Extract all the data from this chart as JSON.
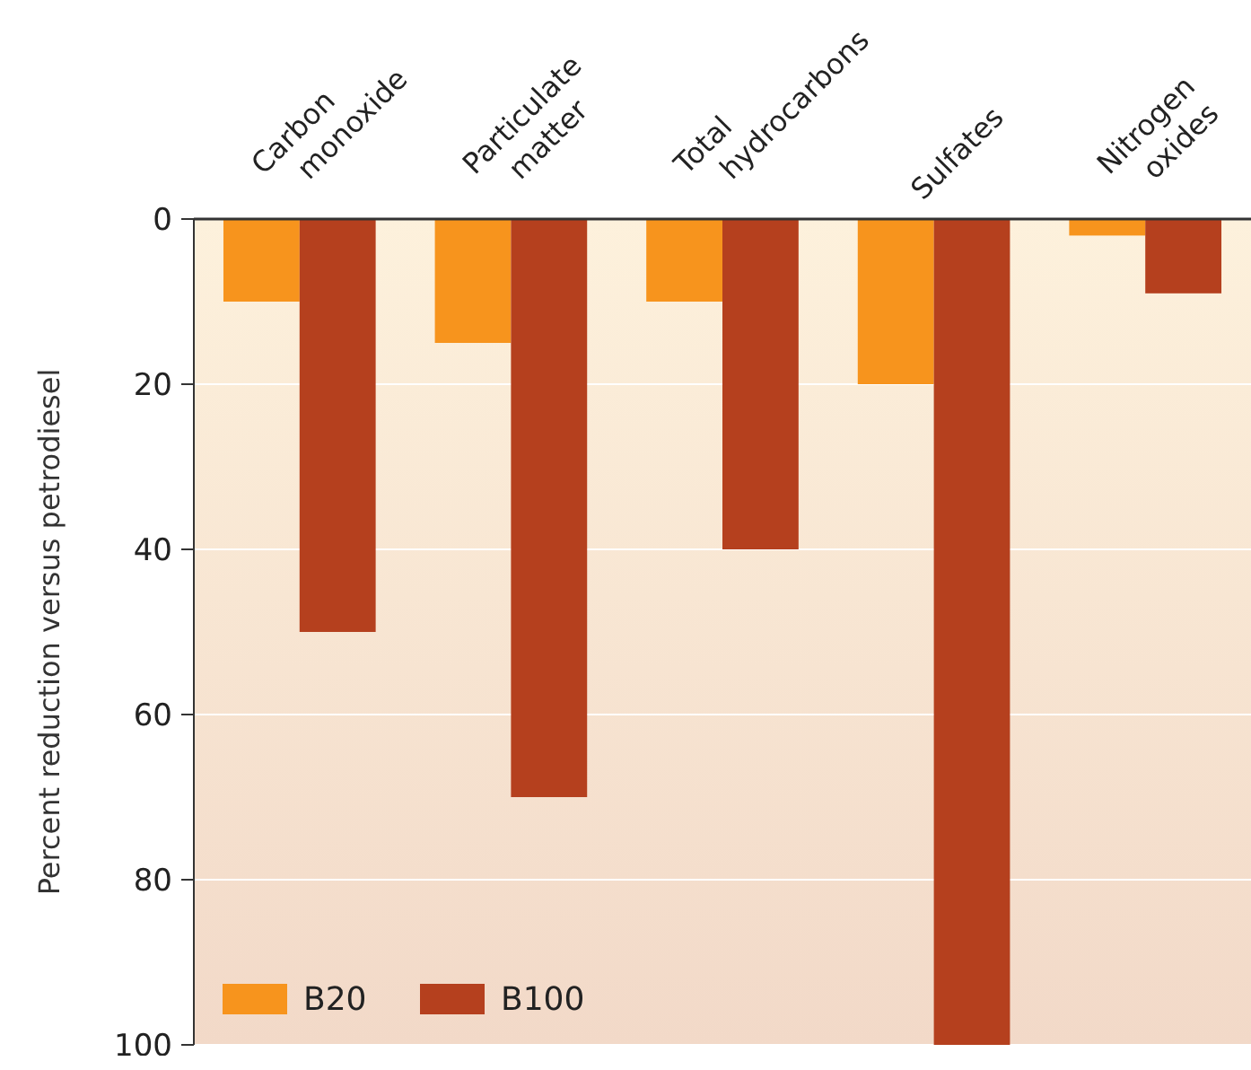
{
  "chart_data": {
    "type": "bar",
    "ylabel": "Percent reduction versus petrodiesel",
    "categories": [
      "Carbon monoxide",
      "Particulate matter",
      "Total hydrocarbons",
      "Sulfates",
      "Nitrogen oxides"
    ],
    "series": [
      {
        "name": "B20",
        "color": "#f7941d",
        "values": [
          10,
          15,
          10,
          20,
          2
        ]
      },
      {
        "name": "B100",
        "color": "#b5401e",
        "values": [
          50,
          70,
          40,
          100,
          9
        ]
      }
    ],
    "ylim": [
      100,
      0
    ],
    "yticks": [
      0,
      20,
      40,
      60,
      80,
      100
    ],
    "grid": "y",
    "legend": "bottom left"
  }
}
